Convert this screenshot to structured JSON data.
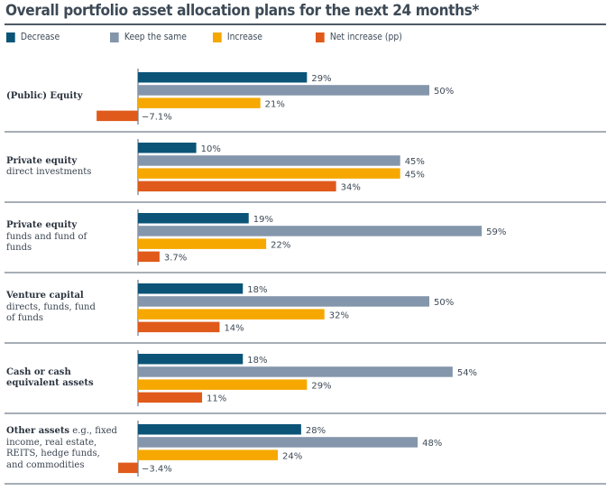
{
  "chart_data": {
    "type": "bar",
    "orientation": "horizontal",
    "title": "Overall portfolio asset allocation plans for the next 24 months*",
    "xlabel": "",
    "ylabel": "",
    "grid": false,
    "legend_position": "top",
    "x_range": [
      -10,
      62
    ],
    "categories": [
      {
        "title": "(Public) Equity",
        "subtitle": ""
      },
      {
        "title": "Private equity",
        "subtitle": "direct investments"
      },
      {
        "title": "Private equity",
        "subtitle": "funds and fund of funds"
      },
      {
        "title": "Venture capital",
        "subtitle": "directs, funds, fund of funds"
      },
      {
        "title": "Cash or cash equivalent assets",
        "subtitle": ""
      },
      {
        "title": "Other assets",
        "subtitle": "e.g., fixed income, real estate, REITS, hedge funds, and commodities"
      }
    ],
    "series": [
      {
        "name": "Decrease",
        "color": "#0b5478",
        "values": [
          29,
          10,
          19,
          18,
          18,
          28
        ],
        "labels": [
          "29%",
          "10%",
          "19%",
          "18%",
          "18%",
          "28%"
        ]
      },
      {
        "name": "Keep the same",
        "color": "#8496ab",
        "values": [
          50,
          45,
          59,
          50,
          54,
          48
        ],
        "labels": [
          "50%",
          "45%",
          "59%",
          "50%",
          "54%",
          "48%"
        ]
      },
      {
        "name": "Increase",
        "color": "#f6a800",
        "values": [
          21,
          45,
          22,
          32,
          29,
          24
        ],
        "labels": [
          "21%",
          "45%",
          "22%",
          "32%",
          "29%",
          "24%"
        ]
      },
      {
        "name": "Net increase (pp)",
        "color": "#e05a1b",
        "values": [
          -7.1,
          34,
          3.7,
          14,
          11,
          -3.4
        ],
        "labels": [
          "−7.1%",
          "34%",
          "3.7%",
          "14%",
          "11%",
          "−3.4%"
        ]
      }
    ]
  },
  "labels_html": [
    {
      "lines": [
        {
          "bold": "(Public) Equity",
          "rest": ""
        }
      ]
    },
    {
      "lines": [
        {
          "bold": "Private equity",
          "rest": ""
        },
        {
          "bold": "",
          "rest": "direct investments"
        }
      ]
    },
    {
      "lines": [
        {
          "bold": "Private equity",
          "rest": ""
        },
        {
          "bold": "",
          "rest": "funds and fund of"
        },
        {
          "bold": "",
          "rest": "funds"
        }
      ]
    },
    {
      "lines": [
        {
          "bold": "Venture capital",
          "rest": ""
        },
        {
          "bold": "",
          "rest": "directs, funds, fund"
        },
        {
          "bold": "",
          "rest": "of funds"
        }
      ]
    },
    {
      "lines": [
        {
          "bold": "Cash or cash",
          "rest": ""
        },
        {
          "bold": "equivalent assets",
          "rest": ""
        }
      ]
    },
    {
      "lines": [
        {
          "bold": "Other assets",
          "rest": " e.g., fixed"
        },
        {
          "bold": "",
          "rest": "income, real estate,"
        },
        {
          "bold": "",
          "rest": "REITS, hedge funds,"
        },
        {
          "bold": "",
          "rest": "and commodities"
        }
      ]
    }
  ]
}
